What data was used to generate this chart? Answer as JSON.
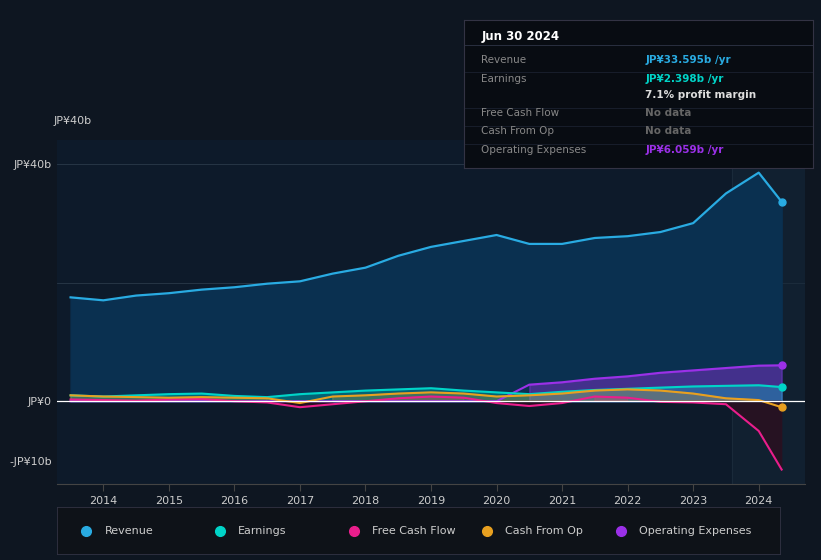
{
  "background_color": "#0e1621",
  "chart_bg_color": "#0d1a2a",
  "years": [
    2013.5,
    2014.0,
    2014.5,
    2015.0,
    2015.5,
    2016.0,
    2016.5,
    2017.0,
    2017.5,
    2018.0,
    2018.5,
    2019.0,
    2019.5,
    2020.0,
    2020.5,
    2021.0,
    2021.5,
    2022.0,
    2022.5,
    2023.0,
    2023.5,
    2024.0,
    2024.35
  ],
  "revenue": [
    17.5,
    17.0,
    17.8,
    18.2,
    18.8,
    19.2,
    19.8,
    20.2,
    21.5,
    22.5,
    24.5,
    26.0,
    27.0,
    28.0,
    26.5,
    26.5,
    27.5,
    27.8,
    28.5,
    30.0,
    35.0,
    38.5,
    33.6
  ],
  "earnings": [
    1.0,
    0.8,
    1.0,
    1.2,
    1.3,
    0.9,
    0.7,
    1.2,
    1.5,
    1.8,
    2.0,
    2.2,
    1.8,
    1.5,
    1.2,
    1.6,
    1.9,
    2.1,
    2.3,
    2.5,
    2.6,
    2.7,
    2.398
  ],
  "free_cash_flow": [
    0.3,
    0.2,
    0.1,
    0.3,
    0.4,
    0.0,
    -0.2,
    -1.0,
    -0.5,
    0.0,
    0.5,
    0.8,
    0.6,
    -0.3,
    -0.8,
    -0.3,
    0.8,
    0.6,
    -0.1,
    -0.2,
    -0.5,
    -5.0,
    -11.5
  ],
  "cash_from_op": [
    1.0,
    0.8,
    0.7,
    0.6,
    0.7,
    0.6,
    0.5,
    -0.3,
    0.8,
    1.0,
    1.3,
    1.5,
    1.3,
    0.8,
    1.0,
    1.3,
    1.8,
    2.0,
    1.8,
    1.3,
    0.5,
    0.2,
    -1.0
  ],
  "operating_expenses": [
    0.0,
    0.0,
    0.0,
    0.0,
    0.0,
    0.0,
    0.0,
    0.0,
    0.0,
    0.0,
    0.0,
    0.0,
    0.0,
    0.0,
    2.8,
    3.2,
    3.8,
    4.2,
    4.8,
    5.2,
    5.6,
    6.0,
    6.059
  ],
  "revenue_color": "#29abe2",
  "earnings_color": "#00d4c8",
  "free_cash_flow_color": "#e91e8c",
  "cash_from_op_color": "#e8a020",
  "operating_expenses_color": "#9b30e8",
  "revenue_fill_color": "#0a3050",
  "neg_fill_color": "#2a1020",
  "ylim_top": 44,
  "ylim_bottom": -14,
  "y_ticks": [
    40,
    0,
    -10
  ],
  "y_tick_labels": [
    "JP¥40b",
    "JP¥0",
    "-JP¥10b"
  ],
  "x_ticks": [
    2014,
    2015,
    2016,
    2017,
    2018,
    2019,
    2020,
    2021,
    2022,
    2023,
    2024
  ],
  "info_box": {
    "date": "Jun 30 2024",
    "rows": [
      {
        "label": "Revenue",
        "value": "JP¥33.595b /yr",
        "value_color": "#29abe2",
        "label_color": "#888888"
      },
      {
        "label": "Earnings",
        "value": "JP¥2.398b /yr",
        "value_color": "#00d4c8",
        "label_color": "#888888"
      },
      {
        "label": "",
        "value": "7.1% profit margin",
        "value_color": "#dddddd",
        "label_color": "#888888"
      },
      {
        "label": "Free Cash Flow",
        "value": "No data",
        "value_color": "#666666",
        "label_color": "#888888"
      },
      {
        "label": "Cash From Op",
        "value": "No data",
        "value_color": "#666666",
        "label_color": "#888888"
      },
      {
        "label": "Operating Expenses",
        "value": "JP¥6.059b /yr",
        "value_color": "#9b30e8",
        "label_color": "#888888"
      }
    ]
  },
  "legend": [
    {
      "label": "Revenue",
      "color": "#29abe2"
    },
    {
      "label": "Earnings",
      "color": "#00d4c8"
    },
    {
      "label": "Free Cash Flow",
      "color": "#e91e8c"
    },
    {
      "label": "Cash From Op",
      "color": "#e8a020"
    },
    {
      "label": "Operating Expenses",
      "color": "#9b30e8"
    }
  ]
}
